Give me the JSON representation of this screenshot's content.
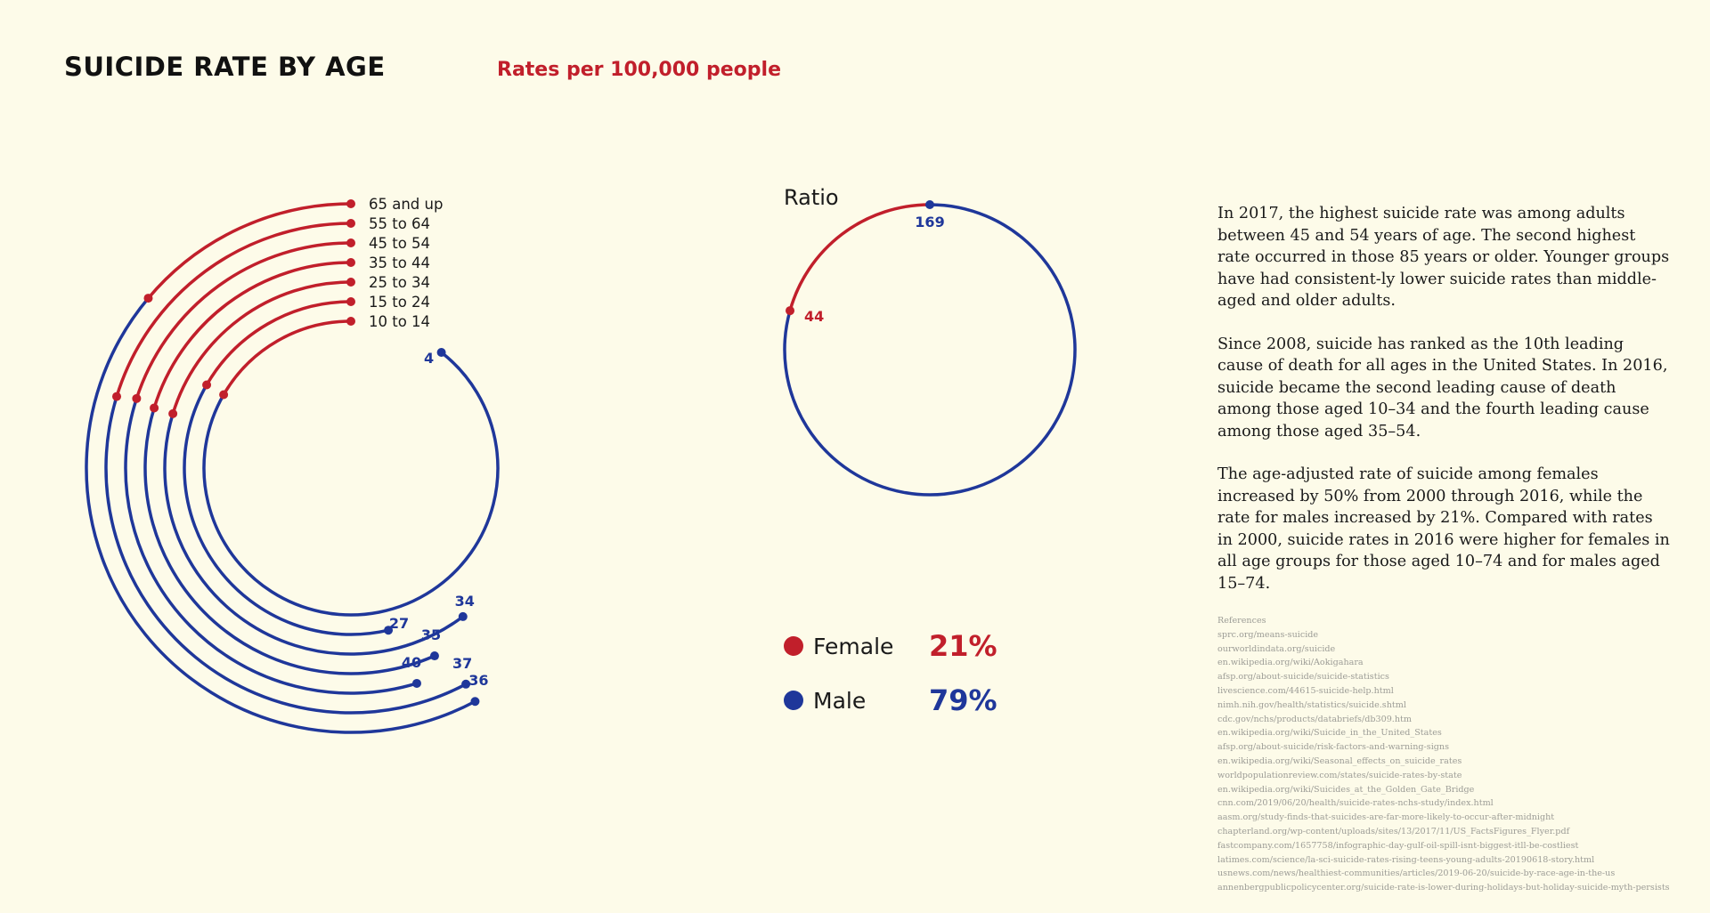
{
  "header": {
    "title": "SUICIDE RATE BY AGE",
    "subtitle": "Rates per 100,000 people"
  },
  "colors": {
    "female": "#c11f2b",
    "male": "#1f379a",
    "background": "#fdfbe9"
  },
  "chart_data": [
    {
      "type": "radial-bar",
      "title": "SUICIDE RATE BY AGE",
      "subtitle": "Rates per 100,000 people",
      "categories": [
        "65 and up",
        "55 to 64",
        "45 to 54",
        "35 to 44",
        "25 to 34",
        "15 to 24",
        "10 to 14"
      ],
      "series": [
        {
          "name": "Female",
          "values": [
            null,
            null,
            null,
            null,
            null,
            null,
            null
          ]
        },
        {
          "name": "Male",
          "values": [
            36,
            37,
            40,
            35,
            34,
            27,
            4
          ]
        }
      ],
      "value_labels": [
        36,
        37,
        40,
        35,
        34,
        27,
        4
      ]
    },
    {
      "type": "pie",
      "title": "Ratio",
      "categories": [
        "Female",
        "Male"
      ],
      "values": [
        44,
        169
      ],
      "percentages": [
        "21%",
        "79%"
      ]
    }
  ],
  "legend": [
    {
      "label": "Female",
      "percent": "21%"
    },
    {
      "label": "Male",
      "percent": "79%"
    }
  ],
  "body": {
    "paragraphs": [
      "In 2017, the highest suicide rate was among adults between 45 and 54 years of age. The second highest rate occurred in those 85 years or older. Younger groups have had consistent-ly lower suicide rates than middle-aged and older adults.",
      "Since 2008, suicide has ranked as the 10th leading cause of death for all ages in the United States. In 2016, suicide became the second leading cause of death among those aged 10–34 and the fourth leading cause among those aged 35–54.",
      "The age-adjusted rate of suicide among females increased by 50% from 2000 through 2016, while the rate for males increased by 21%. Compared with rates in 2000, suicide rates in 2016 were higher for females in all age groups for those aged 10–74 and for males aged 15–74."
    ]
  },
  "references": {
    "heading": "References",
    "items": [
      "sprc.org/means-suicide",
      "ourworldindata.org/suicide",
      "en.wikipedia.org/wiki/Aokigahara",
      "afsp.org/about-suicide/suicide-statistics",
      "livescience.com/44615-suicide-help.html",
      "nimh.nih.gov/health/statistics/suicide.shtml",
      "cdc.gov/nchs/products/databriefs/db309.htm",
      "en.wikipedia.org/wiki/Suicide_in_the_United_States",
      "afsp.org/about-suicide/risk-factors-and-warning-signs",
      "en.wikipedia.org/wiki/Seasonal_effects_on_suicide_rates",
      "worldpopulationreview.com/states/suicide-rates-by-state",
      "en.wikipedia.org/wiki/Suicides_at_the_Golden_Gate_Bridge",
      "cnn.com/2019/06/20/health/suicide-rates-nchs-study/index.html",
      "aasm.org/study-finds-that-suicides-are-far-more-likely-to-occur-after-midnight",
      "chapterland.org/wp-content/uploads/sites/13/2017/11/US_FactsFigures_Flyer.pdf",
      "fastcompany.com/1657758/infographic-day-gulf-oil-spill-isnt-biggest-itll-be-costliest",
      "latimes.com/science/la-sci-suicide-rates-rising-teens-young-adults-20190618-story.html",
      "usnews.com/news/healthiest-communities/articles/2019-06-20/suicide-by-race-age-in-the-us",
      "annenbergpublicpolicycenter.org/suicide-rate-is-lower-during-holidays-but-holiday-suicide-myth-persists"
    ]
  }
}
